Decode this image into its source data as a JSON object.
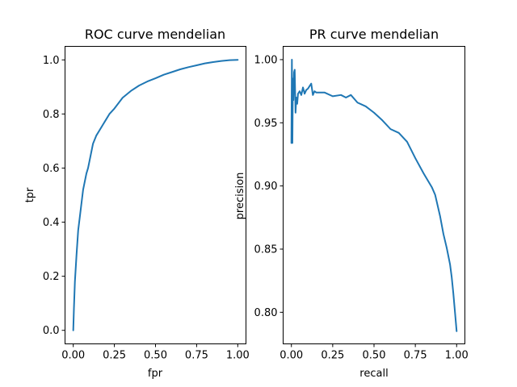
{
  "chart_data": [
    {
      "type": "line",
      "title": "ROC curve mendelian",
      "xlabel": "fpr",
      "ylabel": "tpr",
      "xlim": [
        -0.05,
        1.05
      ],
      "ylim": [
        -0.05,
        1.05
      ],
      "xticks": [
        0.0,
        0.25,
        0.5,
        0.75,
        1.0
      ],
      "xtick_labels": [
        "0.00",
        "0.25",
        "0.50",
        "0.75",
        "1.00"
      ],
      "yticks": [
        0.0,
        0.2,
        0.4,
        0.6,
        0.8,
        1.0
      ],
      "ytick_labels": [
        "0.0",
        "0.2",
        "0.4",
        "0.6",
        "0.8",
        "1.0"
      ],
      "grid": false,
      "series": [
        {
          "color": "#1f77b4",
          "x": [
            0.0,
            0.004,
            0.01,
            0.02,
            0.03,
            0.04,
            0.05,
            0.06,
            0.07,
            0.08,
            0.09,
            0.1,
            0.12,
            0.14,
            0.16,
            0.18,
            0.2,
            0.22,
            0.25,
            0.3,
            0.35,
            0.4,
            0.45,
            0.5,
            0.55,
            0.6,
            0.65,
            0.7,
            0.75,
            0.8,
            0.85,
            0.9,
            0.95,
            1.0
          ],
          "y": [
            0.0,
            0.08,
            0.18,
            0.28,
            0.37,
            0.42,
            0.47,
            0.52,
            0.55,
            0.58,
            0.6,
            0.63,
            0.69,
            0.72,
            0.74,
            0.76,
            0.78,
            0.8,
            0.82,
            0.86,
            0.885,
            0.905,
            0.92,
            0.932,
            0.945,
            0.955,
            0.965,
            0.973,
            0.98,
            0.987,
            0.992,
            0.996,
            0.999,
            1.0
          ]
        }
      ]
    },
    {
      "type": "line",
      "title": "PR curve mendelian",
      "xlabel": "recall",
      "ylabel": "precision",
      "xlim": [
        -0.05,
        1.05
      ],
      "ylim": [
        0.775,
        1.0105
      ],
      "xticks": [
        0.0,
        0.25,
        0.5,
        0.75,
        1.0
      ],
      "xtick_labels": [
        "0.00",
        "0.25",
        "0.50",
        "0.75",
        "1.00"
      ],
      "yticks": [
        0.8,
        0.85,
        0.9,
        0.95,
        1.0
      ],
      "ytick_labels": [
        "0.80",
        "0.85",
        "0.90",
        "0.95",
        "1.00"
      ],
      "grid": false,
      "series": [
        {
          "color": "#1f77b4",
          "x": [
            0.0,
            0.003,
            0.006,
            0.009,
            0.012,
            0.016,
            0.02,
            0.025,
            0.03,
            0.035,
            0.04,
            0.05,
            0.06,
            0.07,
            0.08,
            0.09,
            0.1,
            0.12,
            0.13,
            0.14,
            0.15,
            0.18,
            0.2,
            0.25,
            0.3,
            0.33,
            0.36,
            0.4,
            0.45,
            0.5,
            0.55,
            0.6,
            0.65,
            0.7,
            0.75,
            0.8,
            0.85,
            0.87,
            0.9,
            0.92,
            0.94,
            0.96,
            0.97,
            0.98,
            0.99,
            1.0
          ],
          "y": [
            0.934,
            1.0,
            0.934,
            0.985,
            0.968,
            0.99,
            0.992,
            0.958,
            0.97,
            0.965,
            0.973,
            0.975,
            0.972,
            0.978,
            0.973,
            0.976,
            0.977,
            0.981,
            0.972,
            0.975,
            0.974,
            0.974,
            0.974,
            0.971,
            0.972,
            0.97,
            0.972,
            0.966,
            0.963,
            0.958,
            0.952,
            0.945,
            0.942,
            0.935,
            0.922,
            0.91,
            0.899,
            0.893,
            0.876,
            0.862,
            0.851,
            0.838,
            0.828,
            0.815,
            0.8,
            0.785
          ]
        }
      ]
    }
  ]
}
